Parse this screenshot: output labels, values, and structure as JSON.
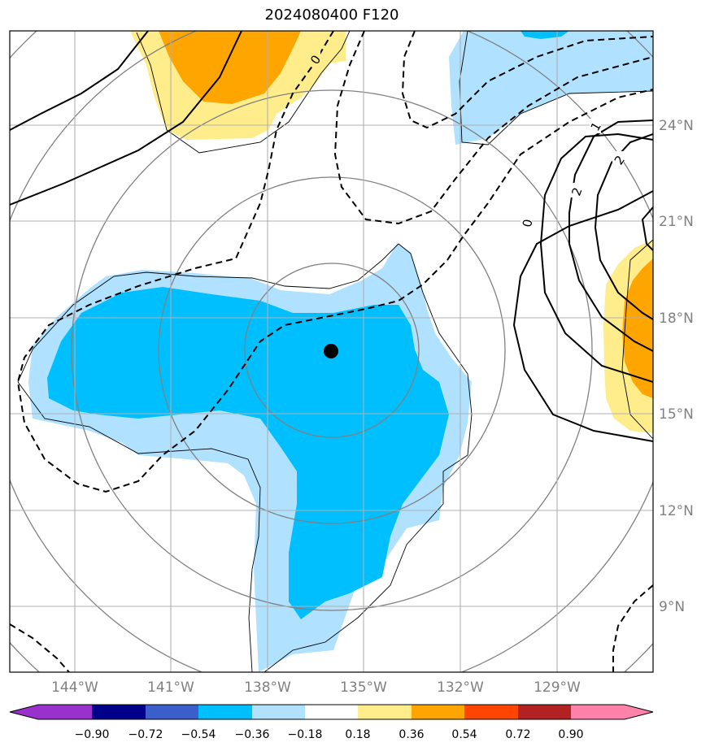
{
  "chart_data": {
    "type": "contour-map",
    "title": "2024080400 F120",
    "lon_ticks": [
      "144°W",
      "141°W",
      "138°W",
      "135°W",
      "132°W",
      "129°W"
    ],
    "lat_ticks": [
      "24°N",
      "21°N",
      "18°N",
      "15°N",
      "12°N",
      "9°N"
    ],
    "lon_range": [
      -146,
      -126
    ],
    "lat_range": [
      7,
      27
    ],
    "grid": true,
    "center_marker": {
      "lon": -136.0,
      "lat": 17.0
    },
    "contour_labels": [
      "0",
      "0",
      "1",
      "2",
      "2"
    ],
    "colorbar": {
      "ticks": [
        "−0.90",
        "−0.72",
        "−0.54",
        "−0.36",
        "−0.18",
        "0.18",
        "0.36",
        "0.54",
        "0.72",
        "0.90"
      ],
      "colors": [
        "#9932cc",
        "#00008b",
        "#3a5fcd",
        "#00bfff",
        "#b0e2ff",
        "#ffffff",
        "#ffec8b",
        "#ffa500",
        "#ff4500",
        "#b22222",
        "#ff82ab"
      ],
      "extend": "both"
    }
  }
}
